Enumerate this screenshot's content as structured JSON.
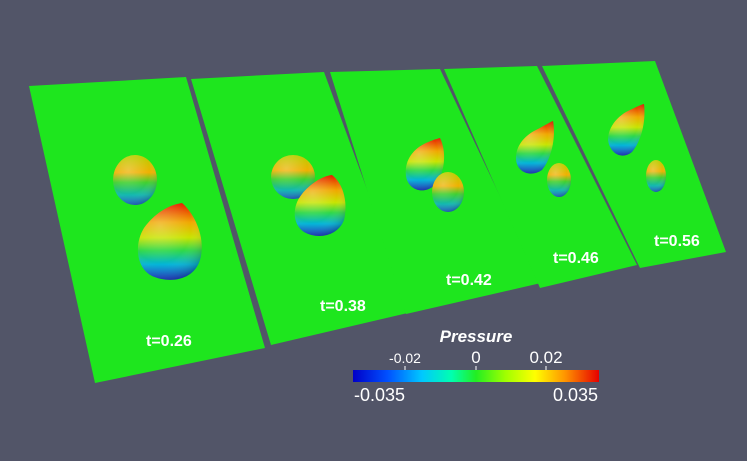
{
  "colors": {
    "background": "#525568",
    "surface": "#1ee61e"
  },
  "panels": [
    {
      "label": "t=0.26"
    },
    {
      "label": "t=0.38"
    },
    {
      "label": "t=0.42"
    },
    {
      "label": "t=0.46"
    },
    {
      "label": "t=0.56"
    }
  ],
  "colorbar": {
    "title": "Pressure",
    "ticks": [
      "-0.02",
      "0",
      "0.02"
    ],
    "min_label": "-0.035",
    "max_label": "0.035",
    "colormap": [
      "#0000c8",
      "#00a0ff",
      "#00ffff",
      "#00ff64",
      "#22ee22",
      "#c8ff00",
      "#ffff00",
      "#ff9600",
      "#e60000"
    ]
  }
}
